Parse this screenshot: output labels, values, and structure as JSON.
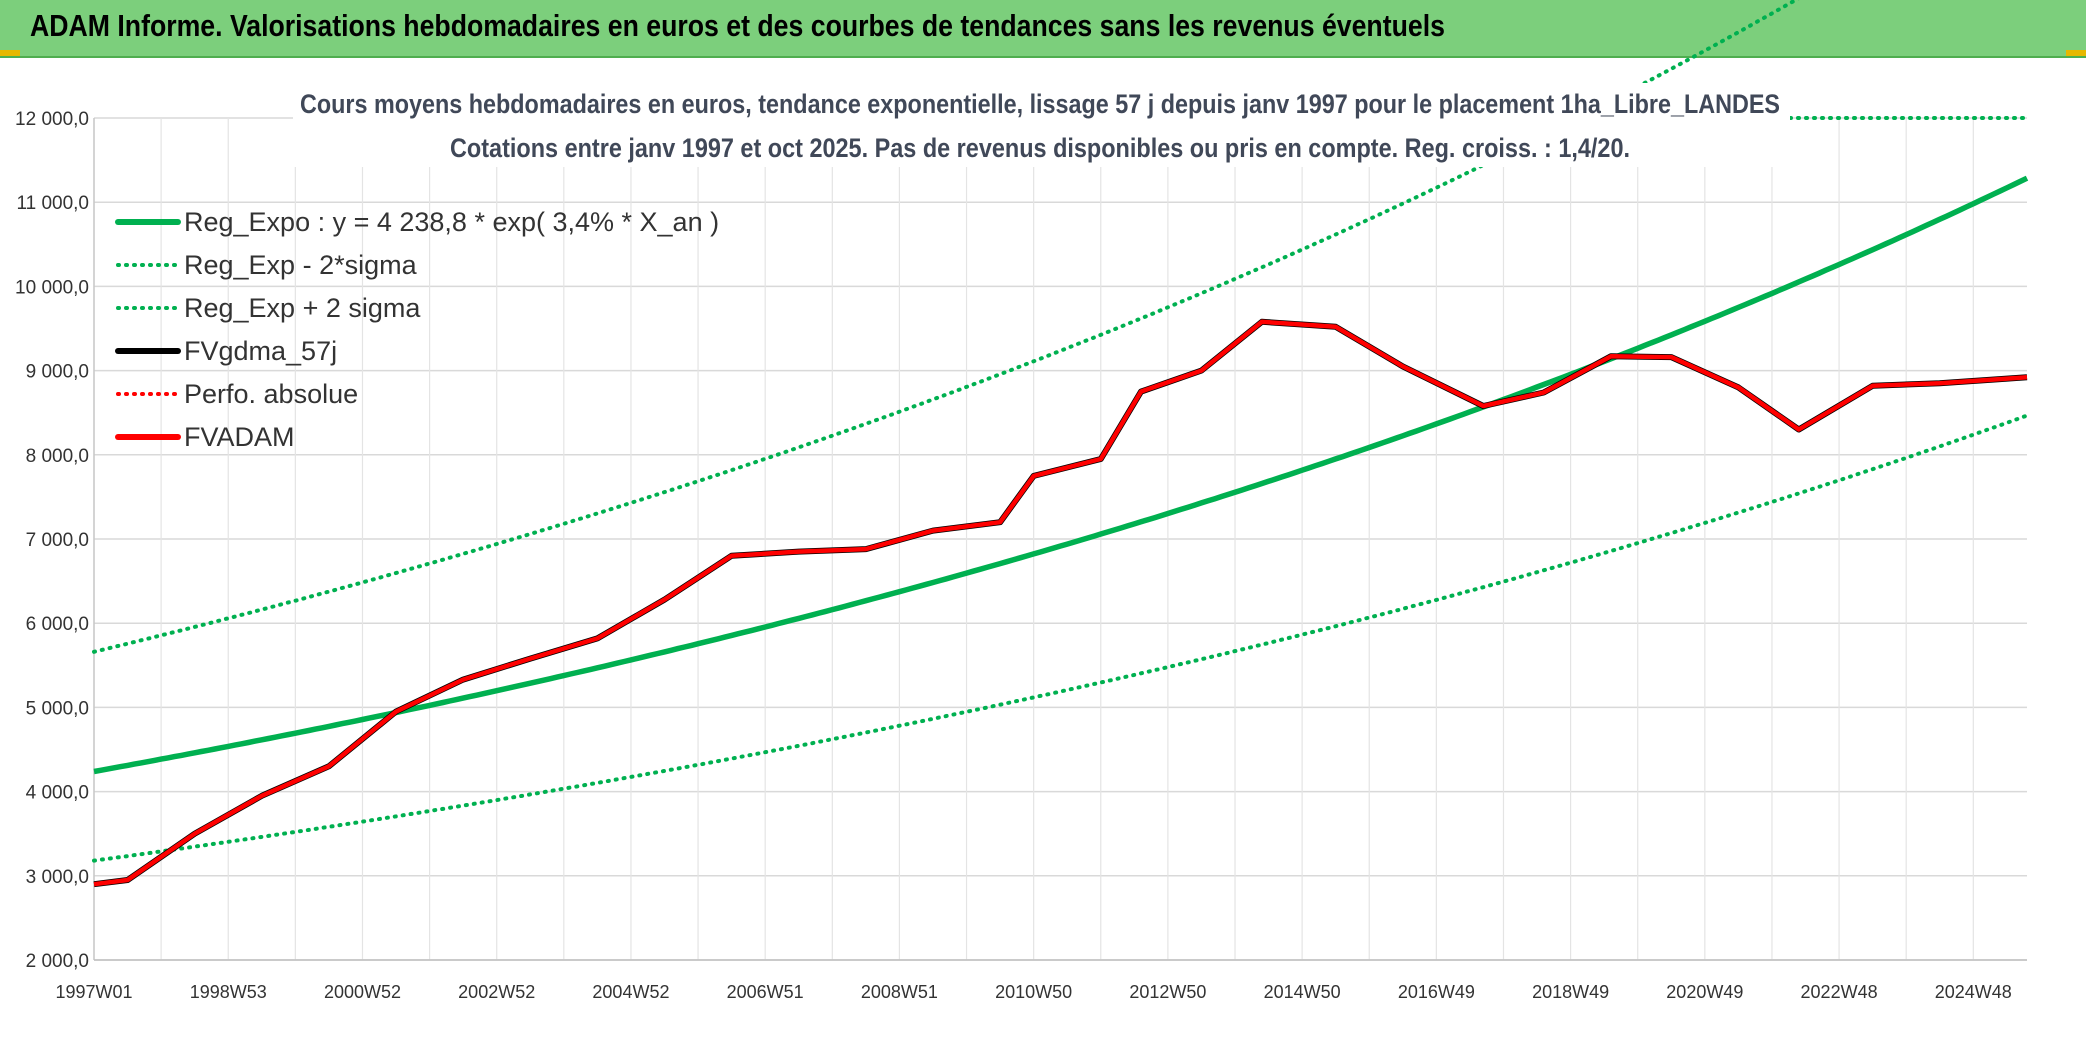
{
  "header": {
    "title": "ADAM Informe. Valorisations hebdomadaires en euros et des courbes de tendances sans les revenus éventuels"
  },
  "colors": {
    "banner": "#7ccf7c",
    "trend_green": "#00b050",
    "fvadam_red": "#ff0000",
    "fvgdma_black": "#000000",
    "grid": "#d9d9d9"
  },
  "chart_data": {
    "type": "line",
    "title_lines": [
      "Cours moyens hebdomadaires en euros, tendance exponentielle, lissage 57 j depuis janv 1997 pour le placement 1ha_Libre_LANDES",
      "Cotations entre janv 1997 et oct 2025. Pas de revenus disponibles ou pris en compte. Reg. croiss. : 1,4/20."
    ],
    "ylim": [
      2000,
      12000
    ],
    "y_ticks": [
      "2 000,0",
      "3 000,0",
      "4 000,0",
      "5 000,0",
      "6 000,0",
      "7 000,0",
      "8 000,0",
      "9 000,0",
      "10 000,0",
      "11 000,0",
      "12 000,0"
    ],
    "xlim": [
      1997.0,
      2025.8
    ],
    "x_tick_labels": [
      {
        "label": "1997W01",
        "t": 1997.0
      },
      {
        "label": "1998W53",
        "t": 1999.0
      },
      {
        "label": "2000W52",
        "t": 2001.0
      },
      {
        "label": "2002W52",
        "t": 2003.0
      },
      {
        "label": "2004W52",
        "t": 2005.0
      },
      {
        "label": "2006W51",
        "t": 2007.0
      },
      {
        "label": "2008W51",
        "t": 2009.0
      },
      {
        "label": "2010W50",
        "t": 2011.0
      },
      {
        "label": "2012W50",
        "t": 2013.0
      },
      {
        "label": "2014W50",
        "t": 2015.0
      },
      {
        "label": "2016W49",
        "t": 2017.0
      },
      {
        "label": "2018W49",
        "t": 2019.0
      },
      {
        "label": "2020W49",
        "t": 2021.0
      },
      {
        "label": "2022W48",
        "t": 2023.0
      },
      {
        "label": "2024W48",
        "t": 2025.0
      }
    ],
    "legend": [
      {
        "label": "Reg_Expo : y = 4 238,8 * exp( 3,4% *  X_an )",
        "color": "#00b050",
        "dash": "solid",
        "key": "reg"
      },
      {
        "label": "Reg_Exp - 2*sigma",
        "color": "#00b050",
        "dash": "dotted",
        "key": "low"
      },
      {
        "label": "Reg_Exp + 2 sigma",
        "color": "#00b050",
        "dash": "dotted",
        "key": "high"
      },
      {
        "label": "FVgdma_57j",
        "color": "#000000",
        "dash": "solid",
        "key": "gdma"
      },
      {
        "label": "Perfo. absolue",
        "color": "#ff0000",
        "dash": "dotted",
        "key": "perfo"
      },
      {
        "label": "FVADAM",
        "color": "#ff0000",
        "dash": "solid",
        "key": "adam"
      }
    ],
    "series": {
      "reg": {
        "a": 4238.8,
        "k": 0.034
      },
      "low": {
        "a": 3180,
        "k": 0.034
      },
      "high": {
        "a": 5660,
        "k": 0.034
      },
      "adam": [
        [
          1997.0,
          2900
        ],
        [
          1997.5,
          2950
        ],
        [
          1998.5,
          3500
        ],
        [
          1999.5,
          3950
        ],
        [
          2000.5,
          4300
        ],
        [
          2001.5,
          4950
        ],
        [
          2002.5,
          5330
        ],
        [
          2003.5,
          5580
        ],
        [
          2004.5,
          5820
        ],
        [
          2005.5,
          6280
        ],
        [
          2006.5,
          6800
        ],
        [
          2007.5,
          6850
        ],
        [
          2008.5,
          6880
        ],
        [
          2009.5,
          7100
        ],
        [
          2010.5,
          7200
        ],
        [
          2011.0,
          7750
        ],
        [
          2012.0,
          7950
        ],
        [
          2012.6,
          8750
        ],
        [
          2013.5,
          9000
        ],
        [
          2014.4,
          9580
        ],
        [
          2015.5,
          9520
        ],
        [
          2016.5,
          9050
        ],
        [
          2017.7,
          8580
        ],
        [
          2018.6,
          8740
        ],
        [
          2019.6,
          9170
        ],
        [
          2020.5,
          9160
        ],
        [
          2021.5,
          8800
        ],
        [
          2022.4,
          8300
        ],
        [
          2023.5,
          8820
        ],
        [
          2024.5,
          8850
        ],
        [
          2025.8,
          8920
        ]
      ]
    }
  }
}
